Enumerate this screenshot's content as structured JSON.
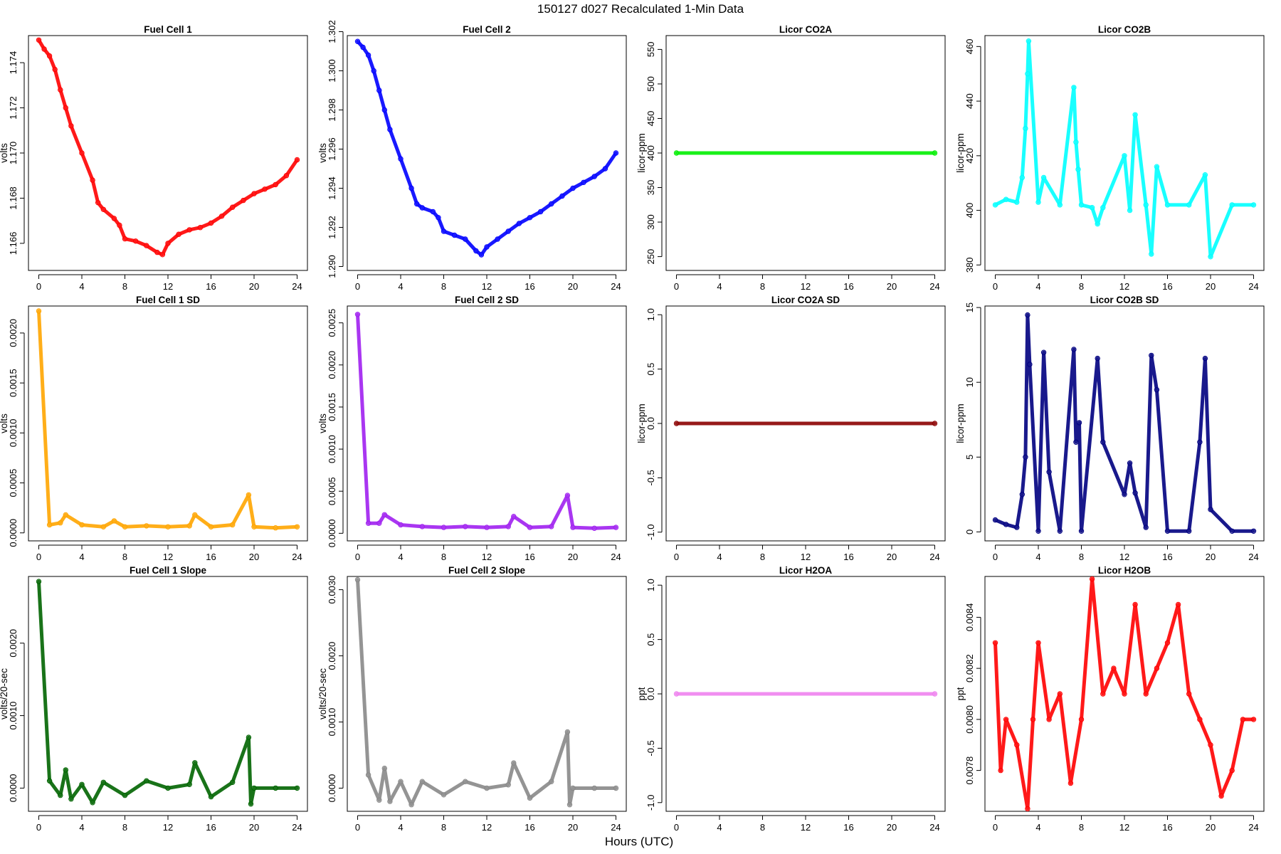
{
  "figure": {
    "title": "150127   d027   Recalculated 1-Min Data",
    "xlabel": "Hours (UTC)"
  },
  "chart_data": [
    {
      "type": "scatter",
      "title": "Fuel Cell 1",
      "xlabel": "",
      "ylabel": "volts",
      "color": "#ff0000",
      "xlim": [
        0,
        24
      ],
      "ylim": [
        1.1648,
        1.1752
      ],
      "xticks": [
        0,
        4,
        8,
        12,
        16,
        20,
        24
      ],
      "yticks": [
        1.166,
        1.168,
        1.17,
        1.172,
        1.174
      ],
      "ytick_labels": [
        "1.166",
        "1.168",
        "1.170",
        "1.172",
        "1.174"
      ],
      "x": [
        0.0,
        0.5,
        1.0,
        1.5,
        2.0,
        2.5,
        3.0,
        4.0,
        5.0,
        5.5,
        6.0,
        7.0,
        7.5,
        8.0,
        9.0,
        10.0,
        11.0,
        11.5,
        12.0,
        13.0,
        14.0,
        15.0,
        16.0,
        17.0,
        18.0,
        19.0,
        20.0,
        21.0,
        22.0,
        23.0,
        24.0
      ],
      "y": [
        1.175,
        1.1746,
        1.1743,
        1.1737,
        1.1728,
        1.172,
        1.1712,
        1.17,
        1.1688,
        1.1678,
        1.1675,
        1.1671,
        1.1668,
        1.1662,
        1.1661,
        1.1659,
        1.1656,
        1.1655,
        1.166,
        1.1664,
        1.1666,
        1.1667,
        1.1669,
        1.1672,
        1.1676,
        1.1679,
        1.1682,
        1.1684,
        1.1686,
        1.169,
        1.1697
      ]
    },
    {
      "type": "scatter",
      "title": "Fuel Cell 2",
      "xlabel": "",
      "ylabel": "volts",
      "color": "#0000ff",
      "xlim": [
        0,
        24
      ],
      "ylim": [
        1.2898,
        1.3018
      ],
      "xticks": [
        0,
        4,
        8,
        12,
        16,
        20,
        24
      ],
      "yticks": [
        1.29,
        1.292,
        1.294,
        1.296,
        1.298,
        1.3,
        1.302
      ],
      "ytick_labels": [
        "1.290",
        "1.292",
        "1.294",
        "1.296",
        "1.298",
        "1.300",
        "1.302"
      ],
      "x": [
        0.0,
        0.5,
        1.0,
        1.5,
        2.0,
        2.5,
        3.0,
        4.0,
        5.0,
        5.5,
        6.0,
        7.0,
        7.5,
        8.0,
        9.0,
        10.0,
        11.0,
        11.5,
        12.0,
        13.0,
        14.0,
        15.0,
        16.0,
        17.0,
        18.0,
        19.0,
        20.0,
        21.0,
        22.0,
        23.0,
        24.0
      ],
      "y": [
        1.3015,
        1.3012,
        1.3008,
        1.3,
        1.299,
        1.298,
        1.297,
        1.2955,
        1.294,
        1.2932,
        1.293,
        1.2928,
        1.2925,
        1.2918,
        1.2916,
        1.2914,
        1.2908,
        1.2906,
        1.291,
        1.2914,
        1.2918,
        1.2922,
        1.2925,
        1.2928,
        1.2932,
        1.2936,
        1.294,
        1.2943,
        1.2946,
        1.295,
        1.2958
      ]
    },
    {
      "type": "scatter",
      "title": "Licor CO2A",
      "xlabel": "",
      "ylabel": "licor-ppm",
      "color": "#00ee00",
      "xlim": [
        0,
        24
      ],
      "ylim": [
        230,
        570
      ],
      "xticks": [
        0,
        4,
        8,
        12,
        16,
        20,
        24
      ],
      "yticks": [
        250,
        300,
        350,
        400,
        450,
        500,
        550
      ],
      "ytick_labels": [
        "250",
        "300",
        "350",
        "400",
        "450",
        "500",
        "550"
      ],
      "x": [
        0,
        24
      ],
      "y": [
        400,
        400
      ]
    },
    {
      "type": "scatter",
      "title": "Licor CO2B",
      "xlabel": "",
      "ylabel": "licor-ppm",
      "color": "#00ffff",
      "xlim": [
        0,
        24
      ],
      "ylim": [
        378,
        464
      ],
      "xticks": [
        0,
        4,
        8,
        12,
        16,
        20,
        24
      ],
      "yticks": [
        380,
        400,
        420,
        440,
        460
      ],
      "ytick_labels": [
        "380",
        "400",
        "420",
        "440",
        "460"
      ],
      "x": [
        0.0,
        1.0,
        2.0,
        2.5,
        2.8,
        3.0,
        3.1,
        4.0,
        4.5,
        6.0,
        7.3,
        7.5,
        7.7,
        8.0,
        9.0,
        9.5,
        10.0,
        12.0,
        12.5,
        13.0,
        14.0,
        14.5,
        15.0,
        16.0,
        18.0,
        19.5,
        20.0,
        22.0,
        24.0
      ],
      "y": [
        402,
        404,
        403,
        412,
        430,
        450,
        462,
        403,
        412,
        402,
        445,
        425,
        415,
        402,
        401,
        395,
        401,
        420,
        400,
        435,
        402,
        384,
        416,
        402,
        402,
        413,
        383,
        402,
        402
      ]
    },
    {
      "type": "scatter",
      "title": "Fuel Cell 1 SD",
      "xlabel": "",
      "ylabel": "volts",
      "color": "#ffa500",
      "xlim": [
        0,
        24
      ],
      "ylim": [
        -8e-05,
        0.00227
      ],
      "xticks": [
        0,
        4,
        8,
        12,
        16,
        20,
        24
      ],
      "yticks": [
        0,
        0.0005,
        0.001,
        0.0015,
        0.002
      ],
      "ytick_labels": [
        "0.0000",
        "0.0005",
        "0.0010",
        "0.0015",
        "0.0020"
      ],
      "x": [
        0.0,
        1.0,
        2.0,
        2.5,
        4.0,
        6.0,
        7.0,
        8.0,
        10.0,
        12.0,
        14.0,
        14.5,
        16.0,
        18.0,
        19.5,
        20.0,
        22.0,
        24.0
      ],
      "y": [
        0.00222,
        8e-05,
        0.0001,
        0.00018,
        8e-05,
        6e-05,
        0.00012,
        6e-05,
        7e-05,
        6e-05,
        7e-05,
        0.00018,
        6e-05,
        8e-05,
        0.00038,
        6e-05,
        5e-05,
        6e-05
      ]
    },
    {
      "type": "scatter",
      "title": "Fuel Cell 2 SD",
      "xlabel": "",
      "ylabel": "volts",
      "color": "#a020f0",
      "xlim": [
        0,
        24
      ],
      "ylim": [
        -9e-05,
        0.0027
      ],
      "xticks": [
        0,
        4,
        8,
        12,
        16,
        20,
        24
      ],
      "yticks": [
        0,
        0.0005,
        0.001,
        0.0015,
        0.002,
        0.0025
      ],
      "ytick_labels": [
        "0.0000",
        "0.0005",
        "0.0010",
        "0.0015",
        "0.0020",
        "0.0025"
      ],
      "x": [
        0.0,
        1.0,
        2.0,
        2.5,
        4.0,
        6.0,
        8.0,
        10.0,
        12.0,
        14.0,
        14.5,
        16.0,
        18.0,
        19.5,
        20.0,
        22.0,
        24.0
      ],
      "y": [
        0.0026,
        0.00012,
        0.00012,
        0.00022,
        0.0001,
        8e-05,
        7e-05,
        8e-05,
        7e-05,
        8e-05,
        0.0002,
        7e-05,
        8e-05,
        0.00045,
        7e-05,
        6e-05,
        7e-05
      ]
    },
    {
      "type": "scatter",
      "title": "Licor CO2A SD",
      "xlabel": "",
      "ylabel": "licor-ppm",
      "color": "#8b0000",
      "xlim": [
        0,
        24
      ],
      "ylim": [
        -1.08,
        1.08
      ],
      "xticks": [
        0,
        4,
        8,
        12,
        16,
        20,
        24
      ],
      "yticks": [
        -1,
        -0.5,
        0,
        0.5,
        1
      ],
      "ytick_labels": [
        "-1.0",
        "-0.5",
        "0.0",
        "0.5",
        "1.0"
      ],
      "x": [
        0,
        24
      ],
      "y": [
        0,
        0
      ]
    },
    {
      "type": "scatter",
      "title": "Licor CO2B SD",
      "xlabel": "",
      "ylabel": "licor-ppm",
      "color": "#000080",
      "xlim": [
        0,
        24
      ],
      "ylim": [
        -0.6,
        15.1
      ],
      "xticks": [
        0,
        4,
        8,
        12,
        16,
        20,
        24
      ],
      "yticks": [
        0,
        5,
        10,
        15
      ],
      "ytick_labels": [
        "0",
        "5",
        "10",
        "15"
      ],
      "x": [
        0.0,
        1.0,
        2.0,
        2.5,
        2.8,
        3.0,
        3.2,
        4.0,
        4.5,
        5.0,
        6.0,
        7.3,
        7.5,
        7.8,
        8.0,
        9.5,
        10.0,
        12.0,
        12.5,
        13.0,
        14.0,
        14.5,
        15.0,
        16.0,
        18.0,
        19.0,
        19.5,
        20.0,
        22.0,
        24.0
      ],
      "y": [
        0.8,
        0.5,
        0.3,
        2.5,
        5.0,
        14.5,
        11.2,
        0.05,
        12.0,
        4.0,
        0.05,
        12.2,
        6.0,
        7.3,
        0.05,
        11.6,
        6.0,
        2.5,
        4.6,
        2.6,
        0.3,
        11.8,
        9.5,
        0.05,
        0.05,
        6.0,
        11.6,
        1.5,
        0.05,
        0.05
      ]
    },
    {
      "type": "scatter",
      "title": "Fuel Cell 1 Slope",
      "xlabel": "",
      "ylabel": "volts/20-sec",
      "color": "#006400",
      "xlim": [
        0,
        24
      ],
      "ylim": [
        -0.00032,
        0.00292
      ],
      "xticks": [
        0,
        4,
        8,
        12,
        16,
        20,
        24
      ],
      "yticks": [
        0,
        0.001,
        0.002
      ],
      "ytick_labels": [
        "0.0000",
        "0.0010",
        "0.0020"
      ],
      "x": [
        0.0,
        1.0,
        2.0,
        2.5,
        3.0,
        4.0,
        5.0,
        6.0,
        8.0,
        10.0,
        12.0,
        14.0,
        14.5,
        16.0,
        18.0,
        19.5,
        19.7,
        20.0,
        22.0,
        24.0
      ],
      "y": [
        0.00285,
        0.0001,
        -0.0001,
        0.00025,
        -0.00015,
        5e-05,
        -0.0002,
        8e-05,
        -0.0001,
        0.0001,
        0.0,
        5e-05,
        0.00035,
        -0.00012,
        8e-05,
        0.0007,
        -0.00022,
        0.0,
        0.0,
        0.0
      ]
    },
    {
      "type": "scatter",
      "title": "Fuel Cell 2 Slope",
      "xlabel": "",
      "ylabel": "volts/20-sec",
      "color": "#888888",
      "xlim": [
        0,
        24
      ],
      "ylim": [
        -0.00035,
        0.0032
      ],
      "xticks": [
        0,
        4,
        8,
        12,
        16,
        20,
        24
      ],
      "yticks": [
        0,
        0.001,
        0.002,
        0.003
      ],
      "ytick_labels": [
        "0.0000",
        "0.0010",
        "0.0020",
        "0.0030"
      ],
      "x": [
        0.0,
        1.0,
        2.0,
        2.5,
        3.0,
        4.0,
        5.0,
        6.0,
        8.0,
        10.0,
        12.0,
        14.0,
        14.5,
        16.0,
        18.0,
        19.5,
        19.7,
        20.0,
        22.0,
        24.0
      ],
      "y": [
        0.00315,
        0.0002,
        -0.00018,
        0.0003,
        -0.0002,
        0.0001,
        -0.00025,
        0.0001,
        -0.0001,
        0.0001,
        0.0,
        5e-05,
        0.00038,
        -0.00015,
        0.0001,
        0.00085,
        -0.00025,
        0.0,
        0.0,
        0.0
      ]
    },
    {
      "type": "scatter",
      "title": "Licor H2OA",
      "xlabel": "",
      "ylabel": "ppt",
      "color": "#ee82ee",
      "xlim": [
        0,
        24
      ],
      "ylim": [
        -1.08,
        1.08
      ],
      "xticks": [
        0,
        4,
        8,
        12,
        16,
        20,
        24
      ],
      "yticks": [
        -1,
        -0.5,
        0,
        0.5,
        1
      ],
      "ytick_labels": [
        "-1.0",
        "-0.5",
        "0.0",
        "0.5",
        "1.0"
      ],
      "x": [
        0,
        24
      ],
      "y": [
        0,
        0
      ]
    },
    {
      "type": "scatter",
      "title": "Licor H2OB",
      "xlabel": "",
      "ylabel": "ppt",
      "color": "#ff0000",
      "xlim": [
        0,
        24
      ],
      "ylim": [
        0.00764,
        0.00856
      ],
      "xticks": [
        0,
        4,
        8,
        12,
        16,
        20,
        24
      ],
      "yticks": [
        0.0078,
        0.008,
        0.0082,
        0.0084
      ],
      "ytick_labels": [
        "0.0078",
        "0.0080",
        "0.0082",
        "0.0084"
      ],
      "x": [
        0.0,
        0.5,
        1.0,
        2.0,
        3.0,
        3.5,
        4.0,
        5.0,
        6.0,
        7.0,
        8.0,
        9.0,
        10.0,
        11.0,
        12.0,
        13.0,
        14.0,
        15.0,
        16.0,
        17.0,
        18.0,
        19.0,
        20.0,
        21.0,
        22.0,
        23.0,
        24.0
      ],
      "y": [
        0.0083,
        0.0078,
        0.008,
        0.0079,
        0.00765,
        0.008,
        0.0083,
        0.008,
        0.0081,
        0.00775,
        0.008,
        0.00855,
        0.0081,
        0.0082,
        0.0081,
        0.00845,
        0.0081,
        0.0082,
        0.0083,
        0.00845,
        0.0081,
        0.008,
        0.0079,
        0.0077,
        0.0078,
        0.008,
        0.008
      ]
    }
  ]
}
